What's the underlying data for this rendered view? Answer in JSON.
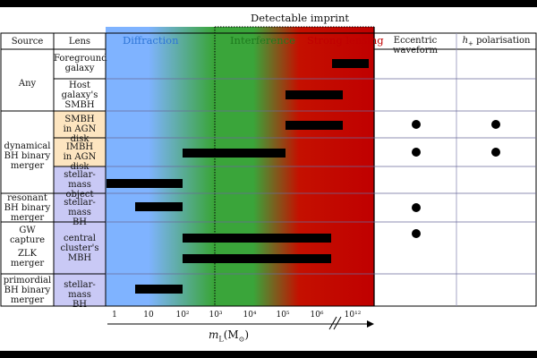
{
  "header": {
    "title": "Detectable imprint",
    "source": "Source",
    "lens": "Lens",
    "diffraction": "Diffraction",
    "interference": "Interference",
    "strong": "Strong lensing",
    "eccentric": "Eccentric waveform",
    "hplus_sym": "h",
    "hplus_sub": "+",
    "hplus_rest": " polarisation"
  },
  "sources": {
    "any": "Any",
    "dyn": [
      "dynamical",
      "BH binary",
      "merger"
    ],
    "res": [
      "resonant",
      "BH binary",
      "merger"
    ],
    "gw": [
      "GW",
      "capture"
    ],
    "zlk": [
      "ZLK",
      "merger"
    ],
    "prim": [
      "primordial",
      "BH binary",
      "merger"
    ]
  },
  "lenses": {
    "fg": [
      "Foreground",
      "galaxy"
    ],
    "host": [
      "Host",
      "galaxy's",
      "SMBH"
    ],
    "smbh": [
      "SMBH",
      "in AGN disk"
    ],
    "imbh": [
      "IMBH",
      "in AGN disk"
    ],
    "stellar_obj": [
      "stellar-mass",
      "object"
    ],
    "stellar_bh1": [
      "stellar-mass",
      "BH"
    ],
    "central": [
      "central",
      "cluster's",
      "MBH"
    ],
    "stellar_bh2": [
      "stellar-mass",
      "BH"
    ]
  },
  "axis": {
    "ticks": [
      "1",
      "10",
      "10²",
      "10³",
      "10⁴",
      "10⁵",
      "10⁶",
      "10¹²"
    ],
    "label_main": "m",
    "label_sub": "L",
    "label_paren": "(M",
    "label_sun": "⊙",
    "label_close": ")"
  },
  "colors": {
    "blue": "#7fb3ff",
    "green": "#3aa53a",
    "red": "#c00000",
    "lens_orange": "#fde5c0",
    "lens_purple": "#c9c9f5",
    "diffraction_text": "#2e75d6",
    "interference_text": "#1e7a1e",
    "strong_text": "#c00000"
  }
}
